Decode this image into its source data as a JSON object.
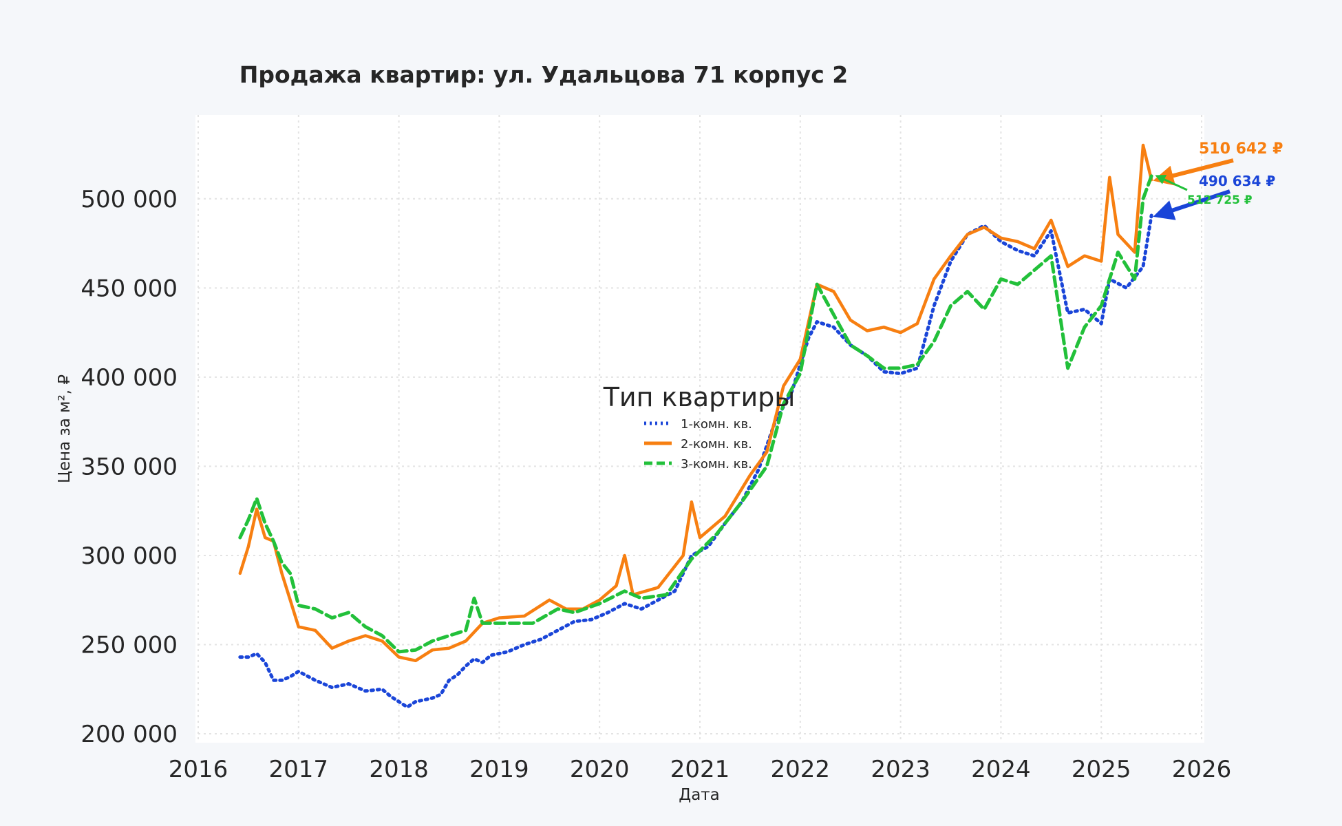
{
  "chart_data": {
    "type": "line",
    "title": "Продажа квартир: ул. Удальцова 71 корпус 2",
    "xlabel": "Дата",
    "ylabel": "Цена за м², ₽",
    "xlim": [
      "2016-01-01",
      "2026-01-01"
    ],
    "ylim": [
      195000,
      547000
    ],
    "x_ticks": [
      "2016",
      "2017",
      "2018",
      "2019",
      "2020",
      "2021",
      "2022",
      "2023",
      "2024",
      "2025",
      "2026"
    ],
    "y_ticks": [
      "200 000",
      "250 000",
      "300 000",
      "350 000",
      "400 000",
      "450 000",
      "500 000"
    ],
    "y_tick_values": [
      200000,
      250000,
      300000,
      350000,
      400000,
      450000,
      500000
    ],
    "grid": true,
    "legend": {
      "title": "Тип квартиры",
      "placement": "center",
      "entries": [
        "1-комн. кв.",
        "2-комн. кв.",
        "3-комн. кв."
      ]
    },
    "series": [
      {
        "name": "1-комн. кв.",
        "color": "#1a45d8",
        "style": "dotted",
        "points": [
          [
            "2016-06",
            243000
          ],
          [
            "2016-07",
            243000
          ],
          [
            "2016-08",
            245000
          ],
          [
            "2016-09",
            240000
          ],
          [
            "2016-10",
            230000
          ],
          [
            "2016-11",
            230000
          ],
          [
            "2016-12",
            232000
          ],
          [
            "2017-01",
            235000
          ],
          [
            "2017-03",
            230000
          ],
          [
            "2017-05",
            226000
          ],
          [
            "2017-07",
            228000
          ],
          [
            "2017-09",
            224000
          ],
          [
            "2017-11",
            225000
          ],
          [
            "2017-12",
            221000
          ],
          [
            "2018-01",
            218000
          ],
          [
            "2018-02",
            215000
          ],
          [
            "2018-03",
            218000
          ],
          [
            "2018-04",
            219000
          ],
          [
            "2018-05",
            220000
          ],
          [
            "2018-06",
            222000
          ],
          [
            "2018-07",
            230000
          ],
          [
            "2018-08",
            233000
          ],
          [
            "2018-09",
            238000
          ],
          [
            "2018-10",
            242000
          ],
          [
            "2018-11",
            240000
          ],
          [
            "2018-12",
            244000
          ],
          [
            "2019-02",
            246000
          ],
          [
            "2019-04",
            250000
          ],
          [
            "2019-06",
            253000
          ],
          [
            "2019-08",
            258000
          ],
          [
            "2019-10",
            263000
          ],
          [
            "2019-12",
            264000
          ],
          [
            "2020-02",
            268000
          ],
          [
            "2020-04",
            273000
          ],
          [
            "2020-06",
            270000
          ],
          [
            "2020-08",
            275000
          ],
          [
            "2020-10",
            280000
          ],
          [
            "2020-12",
            300000
          ],
          [
            "2021-02",
            305000
          ],
          [
            "2021-04",
            318000
          ],
          [
            "2021-06",
            330000
          ],
          [
            "2021-08",
            348000
          ],
          [
            "2021-10",
            375000
          ],
          [
            "2021-12",
            392000
          ],
          [
            "2022-02",
            422000
          ],
          [
            "2022-03",
            431000
          ],
          [
            "2022-05",
            428000
          ],
          [
            "2022-07",
            418000
          ],
          [
            "2022-09",
            412000
          ],
          [
            "2022-11",
            403000
          ],
          [
            "2023-01",
            402000
          ],
          [
            "2023-03",
            405000
          ],
          [
            "2023-05",
            440000
          ],
          [
            "2023-07",
            465000
          ],
          [
            "2023-09",
            480000
          ],
          [
            "2023-11",
            485000
          ],
          [
            "2024-01",
            476000
          ],
          [
            "2024-03",
            471000
          ],
          [
            "2024-05",
            468000
          ],
          [
            "2024-07",
            482000
          ],
          [
            "2024-09",
            436000
          ],
          [
            "2024-11",
            438000
          ],
          [
            "2025-01",
            430000
          ],
          [
            "2025-02",
            455000
          ],
          [
            "2025-04",
            450000
          ],
          [
            "2025-06",
            462000
          ],
          [
            "2025-07",
            490634
          ]
        ]
      },
      {
        "name": "2-комн. кв.",
        "color": "#f77f11",
        "style": "solid",
        "points": [
          [
            "2016-06",
            290000
          ],
          [
            "2016-07",
            305000
          ],
          [
            "2016-08",
            326000
          ],
          [
            "2016-09",
            310000
          ],
          [
            "2016-10",
            308000
          ],
          [
            "2016-11",
            290000
          ],
          [
            "2016-12",
            275000
          ],
          [
            "2017-01",
            260000
          ],
          [
            "2017-03",
            258000
          ],
          [
            "2017-05",
            248000
          ],
          [
            "2017-07",
            252000
          ],
          [
            "2017-09",
            255000
          ],
          [
            "2017-11",
            252000
          ],
          [
            "2018-01",
            243000
          ],
          [
            "2018-03",
            241000
          ],
          [
            "2018-05",
            247000
          ],
          [
            "2018-07",
            248000
          ],
          [
            "2018-09",
            252000
          ],
          [
            "2018-11",
            262000
          ],
          [
            "2019-01",
            265000
          ],
          [
            "2019-04",
            266000
          ],
          [
            "2019-07",
            275000
          ],
          [
            "2019-09",
            270000
          ],
          [
            "2019-11",
            270000
          ],
          [
            "2020-01",
            275000
          ],
          [
            "2020-03",
            283000
          ],
          [
            "2020-04",
            300000
          ],
          [
            "2020-05",
            278000
          ],
          [
            "2020-08",
            282000
          ],
          [
            "2020-11",
            300000
          ],
          [
            "2020-12",
            330000
          ],
          [
            "2021-01",
            310000
          ],
          [
            "2021-04",
            322000
          ],
          [
            "2021-07",
            345000
          ],
          [
            "2021-09",
            358000
          ],
          [
            "2021-11",
            395000
          ],
          [
            "2022-01",
            410000
          ],
          [
            "2022-03",
            452000
          ],
          [
            "2022-05",
            448000
          ],
          [
            "2022-07",
            432000
          ],
          [
            "2022-09",
            426000
          ],
          [
            "2022-11",
            428000
          ],
          [
            "2023-01",
            425000
          ],
          [
            "2023-03",
            430000
          ],
          [
            "2023-05",
            455000
          ],
          [
            "2023-07",
            468000
          ],
          [
            "2023-09",
            480000
          ],
          [
            "2023-11",
            484000
          ],
          [
            "2024-01",
            478000
          ],
          [
            "2024-03",
            476000
          ],
          [
            "2024-05",
            472000
          ],
          [
            "2024-07",
            488000
          ],
          [
            "2024-09",
            462000
          ],
          [
            "2024-11",
            468000
          ],
          [
            "2025-01",
            465000
          ],
          [
            "2025-02",
            512000
          ],
          [
            "2025-03",
            480000
          ],
          [
            "2025-05",
            470000
          ],
          [
            "2025-06",
            530000
          ],
          [
            "2025-07",
            510642
          ]
        ]
      },
      {
        "name": "3-комн. кв.",
        "color": "#22c03a",
        "style": "dashed",
        "points": [
          [
            "2016-06",
            310000
          ],
          [
            "2016-07",
            320000
          ],
          [
            "2016-08",
            332000
          ],
          [
            "2016-09",
            318000
          ],
          [
            "2016-10",
            308000
          ],
          [
            "2016-11",
            296000
          ],
          [
            "2016-12",
            290000
          ],
          [
            "2017-01",
            272000
          ],
          [
            "2017-03",
            270000
          ],
          [
            "2017-05",
            265000
          ],
          [
            "2017-07",
            268000
          ],
          [
            "2017-09",
            260000
          ],
          [
            "2017-11",
            255000
          ],
          [
            "2018-01",
            246000
          ],
          [
            "2018-03",
            247000
          ],
          [
            "2018-05",
            252000
          ],
          [
            "2018-07",
            255000
          ],
          [
            "2018-09",
            258000
          ],
          [
            "2018-10",
            276000
          ],
          [
            "2018-11",
            262000
          ],
          [
            "2019-02",
            262000
          ],
          [
            "2019-05",
            262000
          ],
          [
            "2019-08",
            270000
          ],
          [
            "2019-10",
            268000
          ],
          [
            "2020-01",
            273000
          ],
          [
            "2020-04",
            280000
          ],
          [
            "2020-06",
            276000
          ],
          [
            "2020-09",
            278000
          ],
          [
            "2020-12",
            298000
          ],
          [
            "2021-03",
            312000
          ],
          [
            "2021-06",
            330000
          ],
          [
            "2021-09",
            350000
          ],
          [
            "2021-11",
            385000
          ],
          [
            "2022-01",
            402000
          ],
          [
            "2022-03",
            452000
          ],
          [
            "2022-05",
            435000
          ],
          [
            "2022-07",
            418000
          ],
          [
            "2022-09",
            412000
          ],
          [
            "2022-11",
            405000
          ],
          [
            "2023-01",
            405000
          ],
          [
            "2023-03",
            407000
          ],
          [
            "2023-05",
            420000
          ],
          [
            "2023-07",
            440000
          ],
          [
            "2023-09",
            448000
          ],
          [
            "2023-11",
            438000
          ],
          [
            "2024-01",
            455000
          ],
          [
            "2024-03",
            452000
          ],
          [
            "2024-05",
            460000
          ],
          [
            "2024-07",
            468000
          ],
          [
            "2024-09",
            405000
          ],
          [
            "2024-11",
            428000
          ],
          [
            "2025-01",
            440000
          ],
          [
            "2025-03",
            470000
          ],
          [
            "2025-05",
            455000
          ],
          [
            "2025-06",
            500000
          ],
          [
            "2025-07",
            512725
          ]
        ]
      }
    ],
    "annotations": [
      {
        "text": "510 642 ₽",
        "series": "2-комн. кв.",
        "color": "#f77f11"
      },
      {
        "text": "490 634 ₽",
        "series": "1-комн. кв.",
        "color": "#1a45d8"
      },
      {
        "text": "512 725 ₽",
        "series": "3-комн. кв.",
        "color": "#22c03a"
      }
    ]
  }
}
